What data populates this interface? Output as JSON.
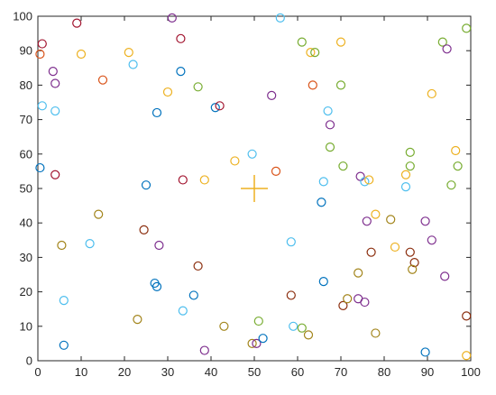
{
  "chart_data": {
    "type": "scatter",
    "title": "",
    "xlabel": "",
    "ylabel": "",
    "xlim": [
      0,
      100
    ],
    "ylim": [
      0,
      100
    ],
    "xticks": [
      "0",
      "10",
      "20",
      "30",
      "40",
      "50",
      "60",
      "70",
      "80",
      "90",
      "100"
    ],
    "yticks": [
      "0",
      "10",
      "20",
      "30",
      "40",
      "50",
      "60",
      "70",
      "80",
      "90",
      "100"
    ],
    "grid": false,
    "marker": "circle-open",
    "palette": {
      "blue": "#0072BD",
      "orange": "#D95319",
      "yellow": "#EDB120",
      "purple": "#7E2F8E",
      "green": "#77AC30",
      "cyan": "#4DBEEE",
      "red": "#A2142F",
      "olive": "#A2841A",
      "maroon": "#8B2E0E"
    },
    "center_marker": {
      "label": "+",
      "x": 50,
      "y": 50,
      "color": "#EDB120"
    },
    "points": [
      {
        "x": 0.5,
        "y": 89,
        "c": "orange"
      },
      {
        "x": 1,
        "y": 92,
        "c": "red"
      },
      {
        "x": 9,
        "y": 98,
        "c": "red"
      },
      {
        "x": 10,
        "y": 89,
        "c": "yellow"
      },
      {
        "x": 31,
        "y": 99.5,
        "c": "purple"
      },
      {
        "x": 56,
        "y": 99.5,
        "c": "cyan"
      },
      {
        "x": 3.5,
        "y": 84,
        "c": "purple"
      },
      {
        "x": 4,
        "y": 80.5,
        "c": "purple"
      },
      {
        "x": 15,
        "y": 81.5,
        "c": "orange"
      },
      {
        "x": 21,
        "y": 89.5,
        "c": "yellow"
      },
      {
        "x": 22,
        "y": 86,
        "c": "cyan"
      },
      {
        "x": 33,
        "y": 93.5,
        "c": "red"
      },
      {
        "x": 33,
        "y": 84,
        "c": "blue"
      },
      {
        "x": 30,
        "y": 78,
        "c": "yellow"
      },
      {
        "x": 37,
        "y": 79.5,
        "c": "green"
      },
      {
        "x": 61,
        "y": 92.5,
        "c": "green"
      },
      {
        "x": 63,
        "y": 89.5,
        "c": "yellow"
      },
      {
        "x": 64,
        "y": 89.5,
        "c": "green"
      },
      {
        "x": 70,
        "y": 92.5,
        "c": "yellow"
      },
      {
        "x": 63.5,
        "y": 80,
        "c": "orange"
      },
      {
        "x": 70,
        "y": 80,
        "c": "green"
      },
      {
        "x": 93.5,
        "y": 92.5,
        "c": "green"
      },
      {
        "x": 94.5,
        "y": 90.5,
        "c": "purple"
      },
      {
        "x": 99,
        "y": 96.5,
        "c": "green"
      },
      {
        "x": 91,
        "y": 77.5,
        "c": "yellow"
      },
      {
        "x": 1,
        "y": 74,
        "c": "cyan"
      },
      {
        "x": 4,
        "y": 72.5,
        "c": "cyan"
      },
      {
        "x": 27.5,
        "y": 72,
        "c": "blue"
      },
      {
        "x": 41,
        "y": 73.5,
        "c": "blue"
      },
      {
        "x": 42,
        "y": 74,
        "c": "red"
      },
      {
        "x": 54,
        "y": 77,
        "c": "purple"
      },
      {
        "x": 67,
        "y": 72.5,
        "c": "cyan"
      },
      {
        "x": 67.5,
        "y": 68.5,
        "c": "purple"
      },
      {
        "x": 0.5,
        "y": 56,
        "c": "blue"
      },
      {
        "x": 4,
        "y": 54,
        "c": "red"
      },
      {
        "x": 25,
        "y": 51,
        "c": "blue"
      },
      {
        "x": 33.5,
        "y": 52.5,
        "c": "red"
      },
      {
        "x": 38.5,
        "y": 52.5,
        "c": "yellow"
      },
      {
        "x": 45.5,
        "y": 58,
        "c": "yellow"
      },
      {
        "x": 49.5,
        "y": 60,
        "c": "cyan"
      },
      {
        "x": 55,
        "y": 55,
        "c": "orange"
      },
      {
        "x": 66,
        "y": 52,
        "c": "cyan"
      },
      {
        "x": 67.5,
        "y": 62,
        "c": "green"
      },
      {
        "x": 70.5,
        "y": 56.5,
        "c": "green"
      },
      {
        "x": 74.5,
        "y": 53.5,
        "c": "purple"
      },
      {
        "x": 75.5,
        "y": 52,
        "c": "cyan"
      },
      {
        "x": 76.5,
        "y": 52.5,
        "c": "yellow"
      },
      {
        "x": 65.5,
        "y": 46,
        "c": "blue"
      },
      {
        "x": 85,
        "y": 54,
        "c": "yellow"
      },
      {
        "x": 85,
        "y": 50.5,
        "c": "cyan"
      },
      {
        "x": 86,
        "y": 60.5,
        "c": "green"
      },
      {
        "x": 86,
        "y": 56.5,
        "c": "green"
      },
      {
        "x": 96.5,
        "y": 61,
        "c": "yellow"
      },
      {
        "x": 97,
        "y": 56.5,
        "c": "green"
      },
      {
        "x": 95.5,
        "y": 51,
        "c": "green"
      },
      {
        "x": 14,
        "y": 42.5,
        "c": "olive"
      },
      {
        "x": 24.5,
        "y": 38,
        "c": "maroon"
      },
      {
        "x": 5.5,
        "y": 33.5,
        "c": "olive"
      },
      {
        "x": 12,
        "y": 34,
        "c": "cyan"
      },
      {
        "x": 28,
        "y": 33.5,
        "c": "purple"
      },
      {
        "x": 37,
        "y": 27.5,
        "c": "maroon"
      },
      {
        "x": 58.5,
        "y": 34.5,
        "c": "cyan"
      },
      {
        "x": 76,
        "y": 40.5,
        "c": "purple"
      },
      {
        "x": 78,
        "y": 42.5,
        "c": "yellow"
      },
      {
        "x": 81.5,
        "y": 41,
        "c": "olive"
      },
      {
        "x": 77,
        "y": 31.5,
        "c": "maroon"
      },
      {
        "x": 82.5,
        "y": 33,
        "c": "yellow"
      },
      {
        "x": 86,
        "y": 31.5,
        "c": "maroon"
      },
      {
        "x": 87,
        "y": 28.5,
        "c": "maroon"
      },
      {
        "x": 86.5,
        "y": 26.5,
        "c": "olive"
      },
      {
        "x": 89.5,
        "y": 40.5,
        "c": "purple"
      },
      {
        "x": 91,
        "y": 35,
        "c": "purple"
      },
      {
        "x": 74,
        "y": 25.5,
        "c": "olive"
      },
      {
        "x": 94,
        "y": 24.5,
        "c": "purple"
      },
      {
        "x": 6,
        "y": 17.5,
        "c": "cyan"
      },
      {
        "x": 6,
        "y": 4.5,
        "c": "blue"
      },
      {
        "x": 23,
        "y": 12,
        "c": "olive"
      },
      {
        "x": 27,
        "y": 22.5,
        "c": "blue"
      },
      {
        "x": 27.5,
        "y": 21.5,
        "c": "blue"
      },
      {
        "x": 33.5,
        "y": 14.5,
        "c": "cyan"
      },
      {
        "x": 36,
        "y": 19,
        "c": "blue"
      },
      {
        "x": 38.5,
        "y": 3,
        "c": "purple"
      },
      {
        "x": 43,
        "y": 10,
        "c": "olive"
      },
      {
        "x": 49.5,
        "y": 5,
        "c": "olive"
      },
      {
        "x": 50.5,
        "y": 5,
        "c": "purple"
      },
      {
        "x": 51,
        "y": 11.5,
        "c": "green"
      },
      {
        "x": 52,
        "y": 6.5,
        "c": "blue"
      },
      {
        "x": 58.5,
        "y": 19,
        "c": "maroon"
      },
      {
        "x": 59,
        "y": 10,
        "c": "cyan"
      },
      {
        "x": 61,
        "y": 9.5,
        "c": "green"
      },
      {
        "x": 62.5,
        "y": 7.5,
        "c": "olive"
      },
      {
        "x": 66,
        "y": 23,
        "c": "blue"
      },
      {
        "x": 70.5,
        "y": 16,
        "c": "maroon"
      },
      {
        "x": 71.5,
        "y": 18,
        "c": "olive"
      },
      {
        "x": 74,
        "y": 18,
        "c": "purple"
      },
      {
        "x": 75.5,
        "y": 17,
        "c": "purple"
      },
      {
        "x": 78,
        "y": 8,
        "c": "olive"
      },
      {
        "x": 89.5,
        "y": 2.5,
        "c": "blue"
      },
      {
        "x": 99,
        "y": 13,
        "c": "maroon"
      },
      {
        "x": 99,
        "y": 1.5,
        "c": "yellow"
      }
    ]
  }
}
